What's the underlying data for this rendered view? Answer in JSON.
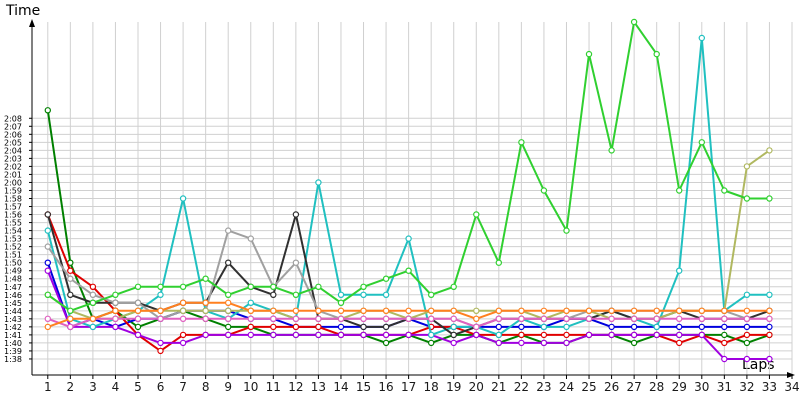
{
  "chart_data": {
    "type": "line",
    "xlabel": "Laps",
    "ylabel": "Time",
    "x_ticks": [
      "1",
      "2",
      "3",
      "4",
      "5",
      "6",
      "7",
      "8",
      "9",
      "10",
      "11",
      "12",
      "13",
      "14",
      "15",
      "16",
      "17",
      "18",
      "19",
      "20",
      "21",
      "22",
      "23",
      "24",
      "25",
      "26",
      "27",
      "28",
      "29",
      "30",
      "31",
      "32",
      "33",
      "34"
    ],
    "y_ticks": [
      "1:38",
      "1:39",
      "1:40",
      "1:41",
      "1:42",
      "1:43",
      "1:44",
      "1:45",
      "1:46",
      "1:47",
      "1:48",
      "1:49",
      "1:50",
      "1:51",
      "1:52",
      "1:53",
      "1:54",
      "1:55",
      "1:56",
      "1:57",
      "1:58",
      "1:59",
      "2:00",
      "2:01",
      "2:02",
      "2:03",
      "2:04",
      "2:05",
      "2:06",
      "2:07",
      "2:08"
    ],
    "xlim": [
      0.3,
      34
    ],
    "ylim_seconds": [
      96,
      140
    ],
    "grid": true,
    "series": [
      {
        "color": "#008000",
        "values": [
          129,
          110,
          103,
          104,
          102,
          103,
          104,
          103,
          102,
          102,
          101,
          101,
          101,
          101,
          101,
          100,
          101,
          100,
          101,
          101,
          100,
          101,
          100,
          100,
          101,
          101,
          100,
          101,
          101,
          101,
          101,
          100,
          101
        ]
      },
      {
        "color": "#0000dd",
        "values": [
          110,
          102,
          103,
          102,
          103,
          103,
          104,
          104,
          104,
          103,
          103,
          102,
          102,
          102,
          102,
          102,
          103,
          102,
          102,
          102,
          102,
          102,
          102,
          103,
          103,
          102,
          102,
          102,
          102,
          102,
          102,
          102,
          102
        ]
      },
      {
        "color": "#e00000",
        "values": [
          116,
          109,
          107,
          104,
          101,
          99,
          101,
          101,
          101,
          102,
          102,
          102,
          102,
          101,
          101,
          101,
          101,
          102,
          102,
          101,
          101,
          101,
          101,
          101,
          101,
          101,
          101,
          101,
          100,
          101,
          100,
          101,
          101
        ]
      },
      {
        "color": "#a000e0",
        "values": [
          109,
          102,
          102,
          102,
          101,
          100,
          100,
          101,
          101,
          101,
          101,
          101,
          101,
          101,
          101,
          101,
          101,
          101,
          100,
          101,
          100,
          100,
          100,
          100,
          101,
          101,
          101,
          101,
          101,
          101,
          98,
          98,
          98
        ]
      },
      {
        "color": "#20c0c0",
        "values": [
          114,
          103,
          102,
          103,
          104,
          106,
          118,
          104,
          103,
          105,
          104,
          103,
          120,
          106,
          106,
          106,
          113,
          101,
          102,
          102,
          101,
          103,
          102,
          102,
          103,
          104,
          103,
          102,
          109,
          138,
          104,
          106,
          106
        ]
      },
      {
        "color": "#303030",
        "values": [
          116,
          106,
          105,
          105,
          105,
          104,
          105,
          105,
          110,
          107,
          106,
          116,
          103,
          103,
          102,
          102,
          103,
          103,
          101,
          102,
          103,
          103,
          103,
          103,
          103,
          104,
          103,
          103,
          104,
          103,
          103,
          103,
          104
        ]
      },
      {
        "color": "#a0a0a0",
        "values": [
          112,
          108,
          106,
          105,
          105,
          103,
          104,
          104,
          114,
          113,
          107,
          110,
          104,
          103,
          103,
          103,
          103,
          103,
          103,
          102,
          103,
          103,
          103,
          103,
          104,
          104,
          104,
          104,
          104,
          104,
          104,
          103,
          103
        ]
      },
      {
        "color": "#b0b860",
        "values": [
          106,
          104,
          103,
          103,
          104,
          104,
          104,
          104,
          104,
          104,
          104,
          103,
          103,
          103,
          104,
          104,
          103,
          104,
          104,
          104,
          104,
          104,
          103,
          104,
          104,
          103,
          103,
          103,
          104,
          104,
          104,
          122,
          124
        ]
      },
      {
        "color": "#e060c0",
        "values": [
          103,
          102,
          103,
          103,
          103,
          103,
          103,
          103,
          103,
          103,
          103,
          103,
          103,
          103,
          103,
          103,
          103,
          103,
          103,
          102,
          103,
          103,
          103,
          103,
          103,
          103,
          103,
          103,
          103,
          103,
          103,
          103,
          103
        ]
      },
      {
        "color": "#30d030",
        "values": [
          106,
          104,
          105,
          106,
          107,
          107,
          107,
          108,
          106,
          107,
          107,
          106,
          107,
          105,
          107,
          108,
          109,
          106,
          107,
          116,
          110,
          125,
          119,
          114,
          136,
          124,
          140,
          136,
          119,
          125,
          119,
          118,
          118
        ]
      },
      {
        "color": "#ff8020",
        "values": [
          102,
          103,
          103,
          104,
          104,
          104,
          105,
          105,
          105,
          104,
          104,
          104,
          104,
          104,
          104,
          104,
          104,
          104,
          104,
          103,
          104,
          104,
          104,
          104,
          104,
          104,
          104,
          104,
          104,
          104,
          104,
          104,
          104
        ]
      }
    ]
  }
}
